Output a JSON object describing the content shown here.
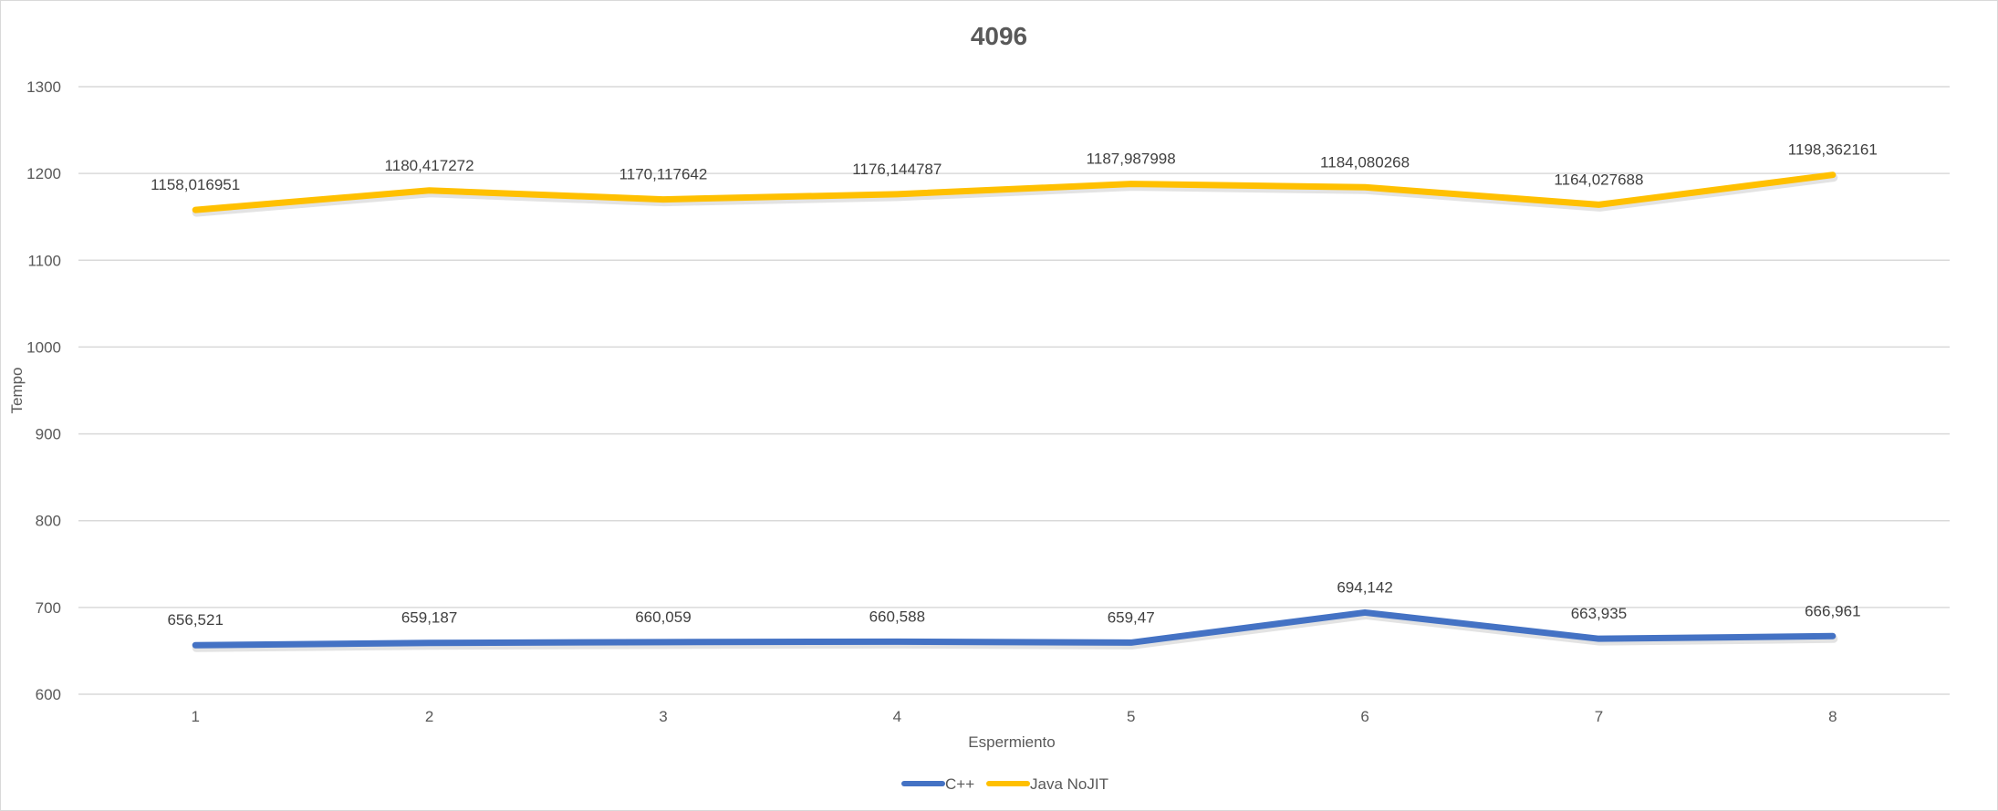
{
  "chart_data": {
    "type": "line",
    "title": "4096",
    "xlabel": "Espermiento",
    "ylabel": "Tempo",
    "categories": [
      "1",
      "2",
      "3",
      "4",
      "5",
      "6",
      "7",
      "8"
    ],
    "ylim": [
      600,
      1300
    ],
    "yticks": [
      "600",
      "700",
      "800",
      "900",
      "1000",
      "1100",
      "1200",
      "1300"
    ],
    "grid": true,
    "legend_position": "bottom",
    "series": [
      {
        "name": "C++",
        "color": "#4472C4",
        "values": [
          656.521,
          659.187,
          660.059,
          660.588,
          659.47,
          694.142,
          663.935,
          666.961
        ],
        "labels": [
          "656,521",
          "659,187",
          "660,059",
          "660,588",
          "659,47",
          "694,142",
          "663,935",
          "666,961"
        ]
      },
      {
        "name": "Java NoJIT",
        "color": "#FFC000",
        "values": [
          1158.016951,
          1180.417272,
          1170.117642,
          1176.144787,
          1187.987998,
          1184.080268,
          1164.027688,
          1198.362161
        ],
        "labels": [
          "1158,016951",
          "1180,417272",
          "1170,117642",
          "1176,144787",
          "1187,987998",
          "1184,080268",
          "1164,027688",
          "1198,362161"
        ]
      }
    ]
  }
}
